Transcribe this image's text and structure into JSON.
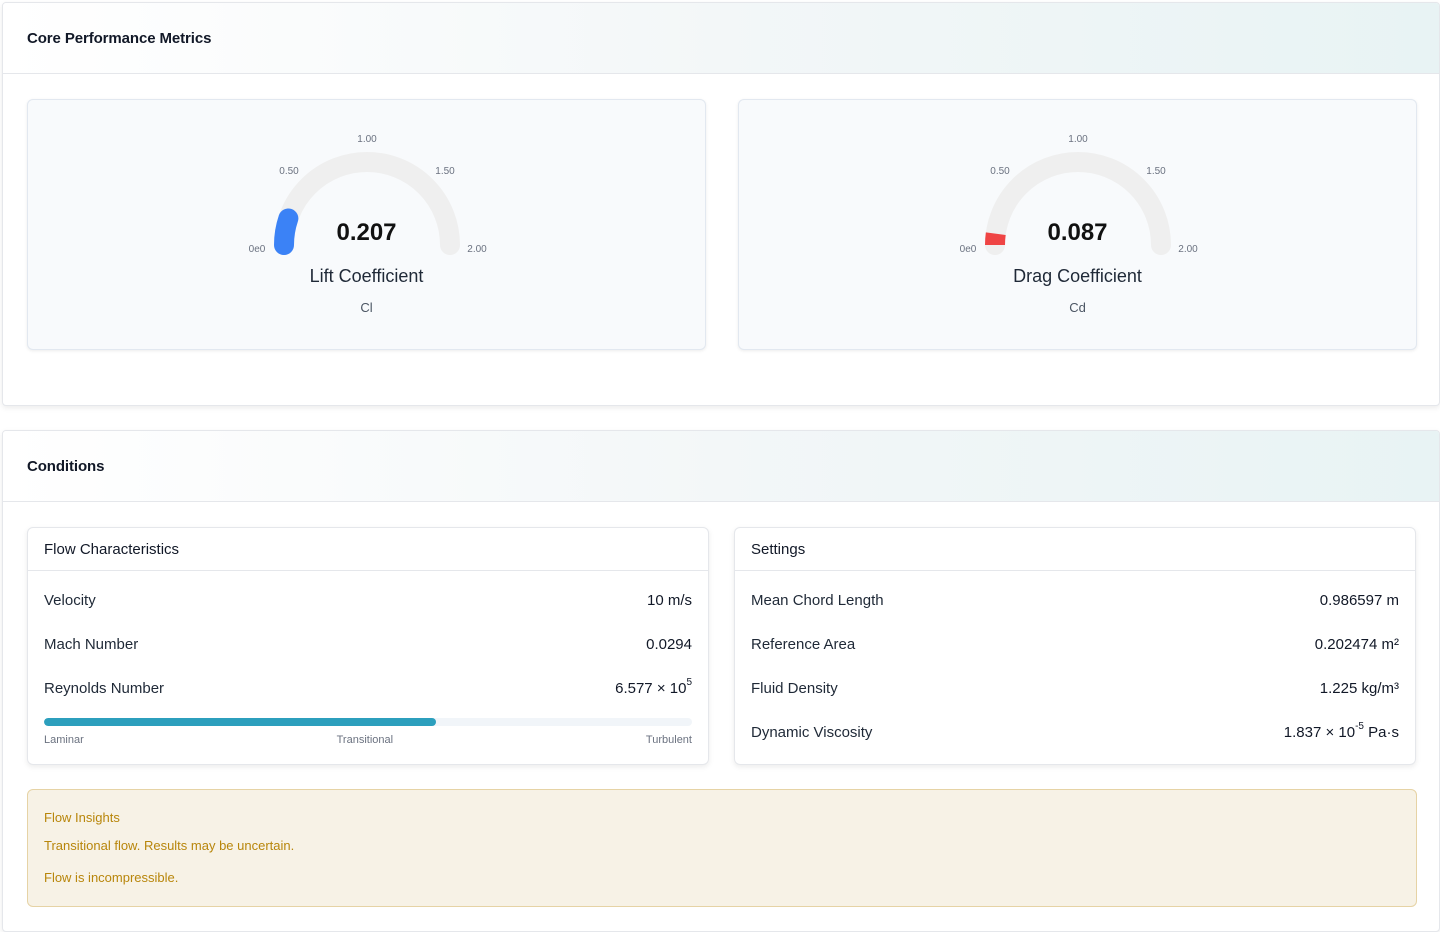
{
  "core": {
    "title": "Core Performance Metrics",
    "gauges": [
      {
        "value": 0.207,
        "value_text": "0.207",
        "label": "Lift Coefficient",
        "symbol": "Cl",
        "color": "#3b82f6",
        "min": 0,
        "max": 2,
        "ticks": [
          "0e0",
          "0.50",
          "1.00",
          "1.50",
          "2.00"
        ]
      },
      {
        "value": 0.087,
        "value_text": "0.087",
        "label": "Drag Coefficient",
        "symbol": "Cd",
        "color": "#ef4444",
        "min": 0,
        "max": 2,
        "ticks": [
          "0e0",
          "0.50",
          "1.00",
          "1.50",
          "2.00"
        ]
      }
    ]
  },
  "conditions": {
    "title": "Conditions",
    "flow": {
      "title": "Flow Characteristics",
      "velocity": {
        "label": "Velocity",
        "value": "10 m/s"
      },
      "mach": {
        "label": "Mach Number",
        "value": "0.0294"
      },
      "reynolds": {
        "label": "Reynolds Number",
        "mantissa": "6.577 × 10",
        "exponent": "5"
      },
      "regime": {
        "fill_fraction": 0.605,
        "labels": [
          "Laminar",
          "Transitional",
          "Turbulent"
        ],
        "color": "#2c9fbd"
      }
    },
    "settings": {
      "title": "Settings",
      "chord": {
        "label": "Mean Chord Length",
        "value": "0.986597 m"
      },
      "area": {
        "label": "Reference Area",
        "value": "0.202474 m²"
      },
      "density": {
        "label": "Fluid Density",
        "value": "1.225 kg/m³"
      },
      "viscosity": {
        "label": "Dynamic Viscosity",
        "mantissa": "1.837 × 10",
        "exponent": "-5",
        "unit": " Pa·s"
      }
    },
    "insights": {
      "title": "Flow Insights",
      "lines": [
        "Transitional flow. Results may be uncertain.",
        "Flow is incompressible."
      ]
    }
  }
}
